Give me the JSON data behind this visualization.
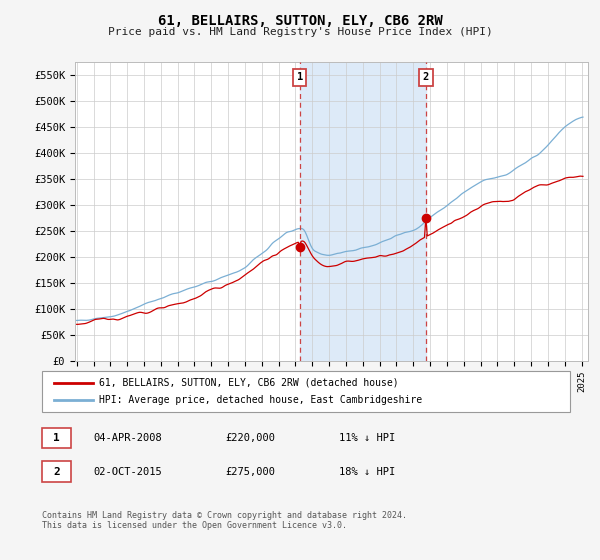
{
  "title": "61, BELLAIRS, SUTTON, ELY, CB6 2RW",
  "subtitle": "Price paid vs. HM Land Registry's House Price Index (HPI)",
  "ylabel_ticks": [
    "£0",
    "£50K",
    "£100K",
    "£150K",
    "£200K",
    "£250K",
    "£300K",
    "£350K",
    "£400K",
    "£450K",
    "£500K",
    "£550K"
  ],
  "ytick_values": [
    0,
    50000,
    100000,
    150000,
    200000,
    250000,
    300000,
    350000,
    400000,
    450000,
    500000,
    550000
  ],
  "ylim": [
    0,
    575000
  ],
  "hpi_color": "#7bafd4",
  "price_color": "#cc0000",
  "annotation1": {
    "label": "1",
    "date": "04-APR-2008",
    "price": "£220,000",
    "pct": "11% ↓ HPI"
  },
  "annotation2": {
    "label": "2",
    "date": "02-OCT-2015",
    "price": "£275,000",
    "pct": "18% ↓ HPI"
  },
  "legend_line1": "61, BELLAIRS, SUTTON, ELY, CB6 2RW (detached house)",
  "legend_line2": "HPI: Average price, detached house, East Cambridgeshire",
  "footer": "Contains HM Land Registry data © Crown copyright and database right 2024.\nThis data is licensed under the Open Government Licence v3.0.",
  "background_color": "#f5f5f5",
  "plot_bg_color": "#ffffff",
  "grid_color": "#cccccc",
  "shade_color": "#ddeaf8",
  "vline_color": "#cc4444"
}
